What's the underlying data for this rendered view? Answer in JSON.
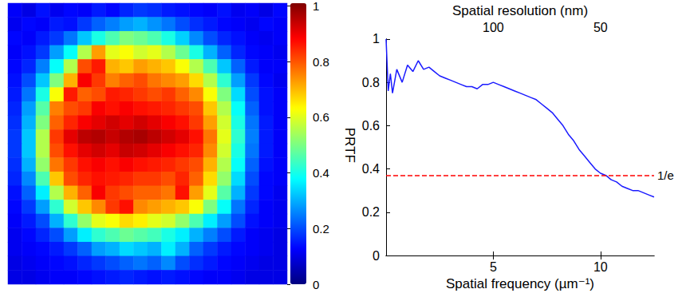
{
  "chart_data": [
    {
      "type": "heatmap",
      "tick_labels": false,
      "cells": [
        [
          0.12,
          0.1,
          0.14,
          0.11,
          0.13,
          0.12,
          0.15,
          0.13,
          0.16,
          0.18,
          0.17,
          0.15,
          0.14,
          0.13,
          0.12,
          0.14,
          0.11,
          0.12,
          0.1,
          0.13
        ],
        [
          0.11,
          0.13,
          0.12,
          0.15,
          0.14,
          0.18,
          0.22,
          0.25,
          0.28,
          0.3,
          0.27,
          0.24,
          0.2,
          0.17,
          0.15,
          0.13,
          0.12,
          0.11,
          0.13,
          0.12
        ],
        [
          0.13,
          0.12,
          0.15,
          0.18,
          0.24,
          0.32,
          0.4,
          0.45,
          0.5,
          0.48,
          0.45,
          0.4,
          0.33,
          0.26,
          0.2,
          0.16,
          0.14,
          0.12,
          0.11,
          0.12
        ],
        [
          0.12,
          0.14,
          0.18,
          0.28,
          0.38,
          0.55,
          0.72,
          0.6,
          0.62,
          0.58,
          0.6,
          0.55,
          0.48,
          0.4,
          0.3,
          0.22,
          0.16,
          0.13,
          0.12,
          0.11
        ],
        [
          0.13,
          0.16,
          0.25,
          0.38,
          0.55,
          0.8,
          0.85,
          0.7,
          0.68,
          0.72,
          0.7,
          0.68,
          0.62,
          0.55,
          0.45,
          0.32,
          0.22,
          0.15,
          0.12,
          0.12
        ],
        [
          0.14,
          0.2,
          0.32,
          0.5,
          0.7,
          0.88,
          0.82,
          0.75,
          0.78,
          0.8,
          0.76,
          0.74,
          0.72,
          0.66,
          0.55,
          0.42,
          0.28,
          0.18,
          0.13,
          0.11
        ],
        [
          0.15,
          0.24,
          0.4,
          0.62,
          0.85,
          0.78,
          0.8,
          0.85,
          0.84,
          0.82,
          0.8,
          0.82,
          0.78,
          0.74,
          0.62,
          0.5,
          0.34,
          0.2,
          0.14,
          0.12
        ],
        [
          0.16,
          0.28,
          0.46,
          0.75,
          0.8,
          0.82,
          0.88,
          0.86,
          0.88,
          0.86,
          0.85,
          0.84,
          0.82,
          0.8,
          0.68,
          0.55,
          0.38,
          0.22,
          0.14,
          0.12
        ],
        [
          0.17,
          0.3,
          0.5,
          0.78,
          0.84,
          0.88,
          0.9,
          0.92,
          0.9,
          0.92,
          0.9,
          0.88,
          0.86,
          0.82,
          0.72,
          0.58,
          0.4,
          0.24,
          0.15,
          0.12
        ],
        [
          0.18,
          0.32,
          0.55,
          0.82,
          0.9,
          0.94,
          0.95,
          0.93,
          0.95,
          0.96,
          0.94,
          0.92,
          0.9,
          0.86,
          0.76,
          0.6,
          0.42,
          0.25,
          0.15,
          0.12
        ],
        [
          0.18,
          0.32,
          0.55,
          0.8,
          0.86,
          0.9,
          0.92,
          0.9,
          0.93,
          0.92,
          0.9,
          0.88,
          0.86,
          0.84,
          0.74,
          0.58,
          0.4,
          0.24,
          0.15,
          0.12
        ],
        [
          0.17,
          0.3,
          0.52,
          0.76,
          0.82,
          0.86,
          0.88,
          0.86,
          0.88,
          0.86,
          0.85,
          0.84,
          0.82,
          0.8,
          0.7,
          0.55,
          0.38,
          0.22,
          0.14,
          0.12
        ],
        [
          0.16,
          0.26,
          0.45,
          0.68,
          0.8,
          0.84,
          0.86,
          0.85,
          0.84,
          0.82,
          0.82,
          0.8,
          0.84,
          0.78,
          0.66,
          0.52,
          0.34,
          0.2,
          0.13,
          0.12
        ],
        [
          0.14,
          0.22,
          0.36,
          0.55,
          0.7,
          0.78,
          0.88,
          0.82,
          0.8,
          0.78,
          0.78,
          0.76,
          0.86,
          0.72,
          0.6,
          0.46,
          0.3,
          0.18,
          0.13,
          0.11
        ],
        [
          0.13,
          0.18,
          0.28,
          0.42,
          0.58,
          0.68,
          0.74,
          0.82,
          0.86,
          0.74,
          0.72,
          0.7,
          0.68,
          0.62,
          0.5,
          0.38,
          0.24,
          0.16,
          0.12,
          0.11
        ],
        [
          0.12,
          0.15,
          0.2,
          0.3,
          0.42,
          0.52,
          0.6,
          0.62,
          0.66,
          0.64,
          0.6,
          0.58,
          0.52,
          0.45,
          0.36,
          0.28,
          0.2,
          0.14,
          0.12,
          0.11
        ],
        [
          0.11,
          0.13,
          0.16,
          0.2,
          0.28,
          0.36,
          0.42,
          0.45,
          0.48,
          0.46,
          0.44,
          0.4,
          0.36,
          0.3,
          0.25,
          0.2,
          0.15,
          0.12,
          0.11,
          0.1
        ],
        [
          0.11,
          0.12,
          0.13,
          0.15,
          0.18,
          0.22,
          0.28,
          0.3,
          0.34,
          0.32,
          0.3,
          0.36,
          0.3,
          0.22,
          0.18,
          0.15,
          0.13,
          0.12,
          0.11,
          0.1
        ],
        [
          0.1,
          0.11,
          0.12,
          0.13,
          0.14,
          0.16,
          0.18,
          0.2,
          0.22,
          0.24,
          0.22,
          0.26,
          0.2,
          0.17,
          0.15,
          0.13,
          0.12,
          0.11,
          0.1,
          0.1
        ],
        [
          0.1,
          0.1,
          0.11,
          0.12,
          0.12,
          0.13,
          0.14,
          0.15,
          0.16,
          0.15,
          0.14,
          0.15,
          0.14,
          0.13,
          0.12,
          0.12,
          0.11,
          0.1,
          0.1,
          0.1
        ]
      ],
      "colorbar": {
        "range": [
          0,
          1
        ],
        "ticks": [
          0,
          0.2,
          0.4,
          0.6,
          0.8,
          1
        ],
        "label": "PRTF",
        "colors": [
          "#00007f",
          "#0000ff",
          "#007fff",
          "#00ffff",
          "#7fff7f",
          "#ffff00",
          "#ff7f00",
          "#ff0000",
          "#7f0000"
        ]
      }
    },
    {
      "type": "line",
      "xlabel": "Spatial frequency (µm⁻¹)",
      "x2label": "Spatial resolution (nm)",
      "x": [
        0,
        0.1,
        0.2,
        0.3,
        0.5,
        0.75,
        1,
        1.25,
        1.5,
        1.75,
        2,
        2.25,
        2.5,
        2.75,
        3,
        3.25,
        3.5,
        3.75,
        4,
        4.25,
        4.5,
        4.75,
        5,
        5.25,
        5.5,
        5.75,
        6,
        6.25,
        6.5,
        6.75,
        7,
        7.25,
        7.5,
        7.75,
        8,
        8.25,
        8.5,
        8.75,
        9,
        9.25,
        9.5,
        9.75,
        10,
        10.25,
        10.5,
        10.75,
        11,
        11.25,
        11.5,
        11.75,
        12,
        12.25,
        12.5
      ],
      "values": [
        1.0,
        0.76,
        0.84,
        0.75,
        0.86,
        0.8,
        0.88,
        0.85,
        0.9,
        0.86,
        0.87,
        0.85,
        0.83,
        0.82,
        0.81,
        0.8,
        0.79,
        0.78,
        0.78,
        0.77,
        0.79,
        0.79,
        0.8,
        0.79,
        0.78,
        0.77,
        0.76,
        0.75,
        0.74,
        0.73,
        0.72,
        0.7,
        0.68,
        0.66,
        0.63,
        0.6,
        0.56,
        0.53,
        0.49,
        0.46,
        0.43,
        0.4,
        0.38,
        0.37,
        0.35,
        0.34,
        0.32,
        0.31,
        0.3,
        0.3,
        0.29,
        0.28,
        0.27
      ],
      "color": "#1a1aff",
      "xlim": [
        0,
        12.5
      ],
      "xticks": [
        5,
        10
      ],
      "x2ticks": [
        {
          "value": 5,
          "label": "100"
        },
        {
          "value": 10,
          "label": "50"
        }
      ],
      "ylim": [
        0,
        1
      ],
      "yticks": [
        0,
        0.2,
        0.4,
        0.6,
        0.8,
        1
      ],
      "grid": false,
      "annotations": [
        {
          "y": 0.368,
          "label": "1/e",
          "color": "#ff0000",
          "line_style": "dashed"
        }
      ]
    }
  ]
}
